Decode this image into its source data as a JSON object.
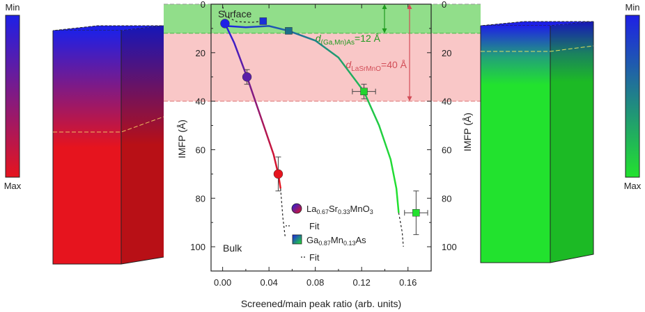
{
  "chart_data": {
    "type": "scatter",
    "xlabel": "Screened/main peak ratio (arb. units)",
    "ylabel_left": "IMFP (Å)",
    "ylabel_right": "IMFP (Å)",
    "xlim": [
      -0.01,
      0.18
    ],
    "ylim": [
      0,
      110
    ],
    "y_inverted": true,
    "x_ticks": [
      "0.00",
      "0.04",
      "0.08",
      "0.12",
      "0.16"
    ],
    "x_tick_values": [
      0,
      0.04,
      0.08,
      0.12,
      0.16
    ],
    "y_ticks": [
      "0",
      "20",
      "40",
      "60",
      "80",
      "100"
    ],
    "y_tick_values": [
      0,
      20,
      40,
      60,
      80,
      100
    ],
    "annotations": {
      "surface": "Surface",
      "bulk": "Bulk"
    },
    "bands": [
      {
        "label_main": "d",
        "label_sub": "(Ga,Mn)As",
        "label_tail": "=12 Å",
        "from": 0,
        "to": 12,
        "color": "#7fe27f"
      },
      {
        "label_main": "d",
        "label_sub": "LaSrMnO",
        "label_tail": "=40 Å",
        "from": 0,
        "to": 40,
        "color": "#f6a9a9"
      }
    ],
    "legend": {
      "placement": "lower-center",
      "entries": [
        {
          "name_parts": [
            "La",
            "0.67",
            "Sr",
            "0.33",
            "MnO",
            "3"
          ],
          "fit": "Fit"
        },
        {
          "name_parts": [
            "Ga",
            "0.87",
            "Mn",
            "0.13",
            "As",
            ""
          ],
          "fit": "Fit"
        }
      ]
    },
    "series": [
      {
        "key": "lsmo",
        "marker": "circle",
        "points": [
          {
            "x": 0.002,
            "y": 8,
            "color": "#1e20e6"
          },
          {
            "x": 0.021,
            "y": 30,
            "color": "#5a1fa8",
            "err_y": 3
          },
          {
            "x": 0.048,
            "y": 70,
            "color": "#e6141e",
            "err_y": 7
          }
        ],
        "fit": [
          [
            0.002,
            8
          ],
          [
            0.01,
            16
          ],
          [
            0.021,
            30
          ],
          [
            0.034,
            48
          ],
          [
            0.044,
            62
          ],
          [
            0.048,
            70
          ],
          [
            0.05,
            76
          ]
        ],
        "fit_extension": [
          [
            0.05,
            76
          ],
          [
            0.052,
            88
          ],
          [
            0.054,
            96
          ]
        ]
      },
      {
        "key": "gamnas",
        "marker": "square",
        "points": [
          {
            "x": 0.035,
            "y": 7,
            "color": "#1a2fd8"
          },
          {
            "x": 0.057,
            "y": 11,
            "color": "#1d6e8a"
          },
          {
            "x": 0.122,
            "y": 36,
            "color": "#22d42e",
            "err_x": 0.01,
            "err_y": 3
          },
          {
            "x": 0.167,
            "y": 86,
            "color": "#22e22e",
            "err_x": 0.01,
            "err_y": 9
          }
        ],
        "fit": [
          [
            0.003,
            9
          ],
          [
            0.02,
            9.5
          ],
          [
            0.04,
            9
          ],
          [
            0.057,
            11
          ],
          [
            0.08,
            15
          ],
          [
            0.1,
            22
          ],
          [
            0.122,
            36
          ],
          [
            0.135,
            50
          ],
          [
            0.145,
            64
          ],
          [
            0.15,
            76
          ],
          [
            0.152,
            86
          ]
        ],
        "fit_extension_top": [
          [
            0.0,
            1
          ],
          [
            0.003,
            5
          ],
          [
            0.012,
            7.2
          ],
          [
            0.025,
            7.5
          ],
          [
            0.035,
            7
          ]
        ],
        "fit_extension_bottom": [
          [
            0.152,
            86
          ],
          [
            0.155,
            94
          ],
          [
            0.156,
            100
          ]
        ]
      }
    ]
  },
  "colorbars": {
    "left": {
      "top": "Min",
      "bottom": "Max",
      "colors": [
        "#1e20e6",
        "#e6141e"
      ]
    },
    "right": {
      "top": "Min",
      "bottom": "Max",
      "colors": [
        "#1e20e6",
        "#22e22e"
      ]
    }
  }
}
